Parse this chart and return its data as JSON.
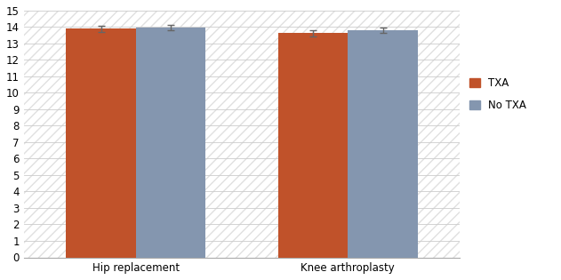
{
  "categories": [
    "Hip replacement",
    "Knee arthroplasty"
  ],
  "txa_values": [
    13.9,
    13.62
  ],
  "notxa_values": [
    13.97,
    13.82
  ],
  "txa_errors": [
    0.2,
    0.18
  ],
  "notxa_errors": [
    0.18,
    0.16
  ],
  "txa_color": "#C0522A",
  "notxa_color": "#8496AF",
  "ylim": [
    0,
    15
  ],
  "yticks": [
    0,
    1,
    2,
    3,
    4,
    5,
    6,
    7,
    8,
    9,
    10,
    11,
    12,
    13,
    14,
    15
  ],
  "bar_width": 0.28,
  "legend_labels": [
    "TXA",
    "No TXA"
  ],
  "background_color": "#FFFFFF",
  "hatch_bg": "///",
  "hatch_bg_color": "#E0E0E0",
  "error_color": "#666666",
  "error_capsize": 3,
  "error_linewidth": 1.0,
  "tick_fontsize": 8.5,
  "label_fontsize": 8.5,
  "group_positions": [
    0.45,
    1.3
  ]
}
